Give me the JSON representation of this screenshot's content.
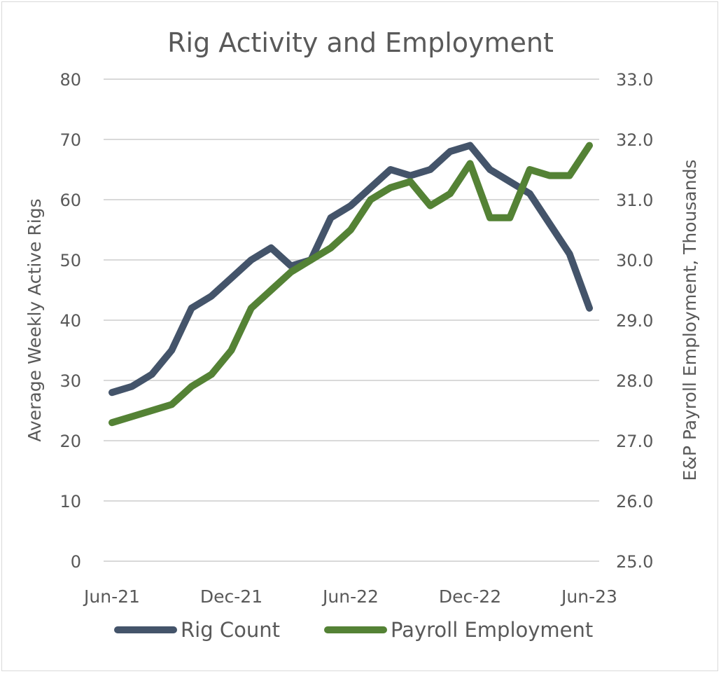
{
  "chart_data": {
    "type": "line",
    "title": "Rig Activity and Employment",
    "x": [
      "Jun-21",
      "Jul-21",
      "Aug-21",
      "Sep-21",
      "Oct-21",
      "Nov-21",
      "Dec-21",
      "Jan-22",
      "Feb-22",
      "Mar-22",
      "Apr-22",
      "May-22",
      "Jun-22",
      "Jul-22",
      "Aug-22",
      "Sep-22",
      "Oct-22",
      "Nov-22",
      "Dec-22",
      "Jan-23",
      "Feb-23",
      "Mar-23",
      "Apr-23",
      "May-23",
      "Jun-23"
    ],
    "x_tick_labels": [
      "Jun-21",
      "Dec-21",
      "Jun-22",
      "Dec-22",
      "Jun-23"
    ],
    "ylabel": "Average Weekly Active Rigs",
    "y2label": "E&P Payroll Employment, Thousands",
    "ylim": [
      0,
      80
    ],
    "y2lim": [
      25.0,
      33.0
    ],
    "y_ticks": [
      "0",
      "10",
      "20",
      "30",
      "40",
      "50",
      "60",
      "70",
      "80"
    ],
    "y2_ticks": [
      "25.0",
      "26.0",
      "27.0",
      "28.0",
      "29.0",
      "30.0",
      "31.0",
      "32.0",
      "33.0"
    ],
    "grid": true,
    "legend_position": "bottom",
    "series": [
      {
        "name": "Rig Count",
        "axis": "left",
        "color": "#44546a",
        "values": [
          28,
          29,
          31,
          35,
          42,
          44,
          47,
          50,
          52,
          49,
          50,
          57,
          59,
          62,
          65,
          64,
          65,
          68,
          69,
          65,
          63,
          61,
          56,
          51,
          42
        ]
      },
      {
        "name": "Payroll Employment",
        "axis": "right",
        "color": "#548235",
        "values": [
          27.3,
          27.4,
          27.5,
          27.6,
          27.9,
          28.1,
          28.5,
          29.2,
          29.5,
          29.8,
          30.0,
          30.2,
          30.5,
          31.0,
          31.2,
          31.3,
          30.9,
          31.1,
          31.6,
          30.7,
          30.7,
          31.5,
          31.4,
          31.4,
          31.9
        ]
      }
    ]
  }
}
